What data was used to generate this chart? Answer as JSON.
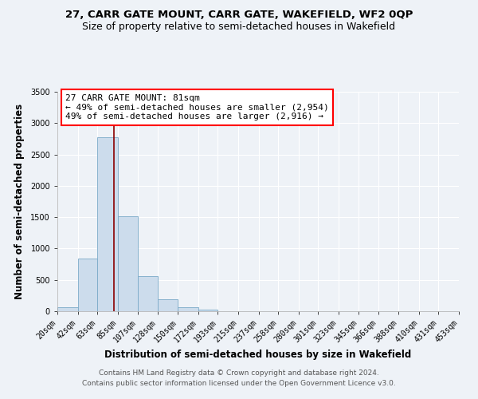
{
  "title": "27, CARR GATE MOUNT, CARR GATE, WAKEFIELD, WF2 0QP",
  "subtitle": "Size of property relative to semi-detached houses in Wakefield",
  "xlabel": "Distribution of semi-detached houses by size in Wakefield",
  "ylabel": "Number of semi-detached properties",
  "bar_color": "#ccdcec",
  "bar_edge_color": "#7aaac8",
  "background_color": "#eef2f7",
  "grid_color": "#ffffff",
  "vline_x": 81,
  "vline_color": "#8b0000",
  "annotation_line1": "27 CARR GATE MOUNT: 81sqm",
  "annotation_line2": "← 49% of semi-detached houses are smaller (2,954)",
  "annotation_line3": "49% of semi-detached houses are larger (2,916) →",
  "bin_edges": [
    20,
    42,
    63,
    85,
    107,
    128,
    150,
    172,
    193,
    215,
    237,
    258,
    280,
    301,
    323,
    345,
    366,
    388,
    410,
    431,
    453
  ],
  "bar_heights": [
    70,
    840,
    2780,
    1510,
    555,
    185,
    60,
    20,
    5,
    2,
    1,
    0,
    0,
    0,
    0,
    0,
    0,
    0,
    0,
    0
  ],
  "ylim": [
    0,
    3500
  ],
  "yticks": [
    0,
    500,
    1000,
    1500,
    2000,
    2500,
    3000,
    3500
  ],
  "footer_line1": "Contains HM Land Registry data © Crown copyright and database right 2024.",
  "footer_line2": "Contains public sector information licensed under the Open Government Licence v3.0.",
  "title_fontsize": 9.5,
  "subtitle_fontsize": 9,
  "axis_label_fontsize": 8.5,
  "tick_fontsize": 7,
  "annotation_fontsize": 8,
  "footer_fontsize": 6.5
}
